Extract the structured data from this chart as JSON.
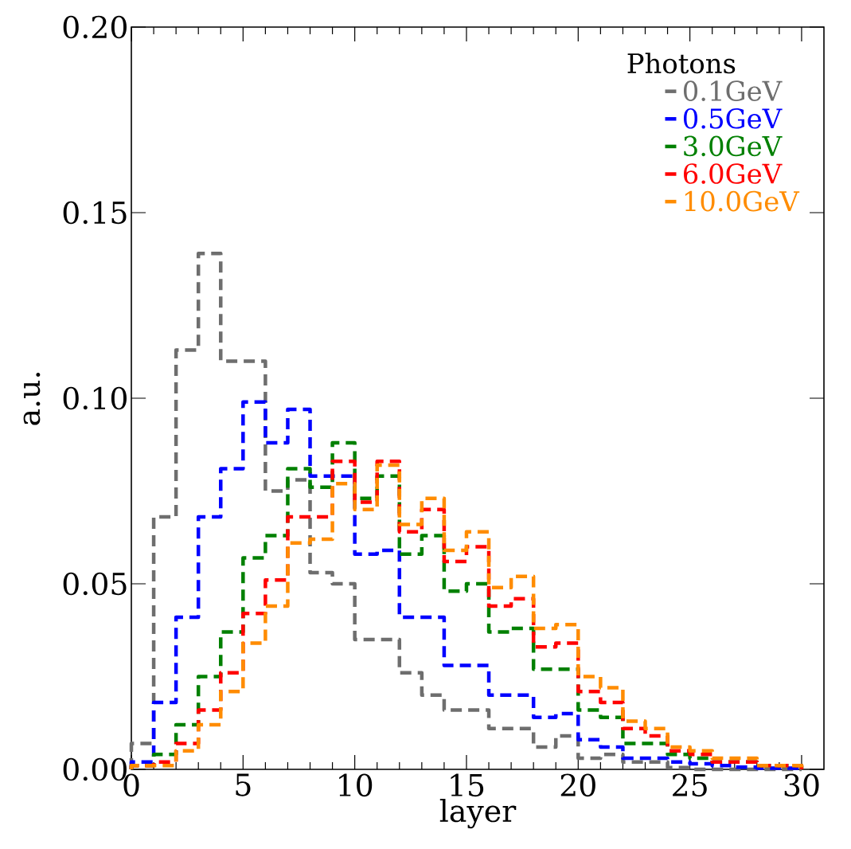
{
  "chart_data": {
    "type": "histogram",
    "xlabel": "layer",
    "ylabel": "a.u.",
    "legend_title": "Photons",
    "legend": "top right",
    "line_style": "dashed",
    "bins": [
      0,
      1,
      2,
      3,
      4,
      5,
      6,
      7,
      8,
      9,
      10,
      11,
      12,
      13,
      14,
      15,
      16,
      17,
      18,
      19,
      20,
      21,
      22,
      23,
      24,
      25,
      26,
      27,
      28,
      29,
      30
    ],
    "series": [
      {
        "name": "0.1GeV",
        "color": "#6e6e6e",
        "values": [
          0.007,
          0.068,
          0.113,
          0.139,
          0.11,
          0.11,
          0.075,
          0.078,
          0.053,
          0.05,
          0.035,
          0.035,
          0.026,
          0.02,
          0.016,
          0.016,
          0.011,
          0.011,
          0.006,
          0.009,
          0.003,
          0.004,
          0.002,
          0.002,
          0.0005,
          0,
          0,
          0,
          0,
          0
        ]
      },
      {
        "name": "0.5GeV",
        "color": "#0000ff",
        "values": [
          0.002,
          0.018,
          0.041,
          0.068,
          0.081,
          0.099,
          0.088,
          0.097,
          0.079,
          0.079,
          0.058,
          0.059,
          0.041,
          0.041,
          0.028,
          0.028,
          0.02,
          0.02,
          0.014,
          0.015,
          0.008,
          0.006,
          0.003,
          0.003,
          0.002,
          0.0015,
          0.001,
          0.0006,
          0.0003,
          0.0003
        ]
      },
      {
        "name": "3.0GeV",
        "color": "#008000",
        "values": [
          0.001,
          0.004,
          0.012,
          0.025,
          0.037,
          0.057,
          0.063,
          0.081,
          0.076,
          0.088,
          0.073,
          0.079,
          0.058,
          0.063,
          0.048,
          0.05,
          0.037,
          0.038,
          0.027,
          0.027,
          0.016,
          0.014,
          0.007,
          0.007,
          0.004,
          0.003,
          0.002,
          0.002,
          0.001,
          0.001
        ]
      },
      {
        "name": "6.0GeV",
        "color": "#ff0000",
        "values": [
          0.001,
          0.002,
          0.007,
          0.016,
          0.026,
          0.042,
          0.051,
          0.068,
          0.068,
          0.083,
          0.072,
          0.083,
          0.064,
          0.07,
          0.056,
          0.06,
          0.044,
          0.046,
          0.033,
          0.034,
          0.021,
          0.018,
          0.011,
          0.009,
          0.005,
          0.004,
          0.002,
          0.002,
          0.001,
          0.001
        ]
      },
      {
        "name": "10.0GeV",
        "color": "#ff8c00",
        "values": [
          0.001,
          0.001,
          0.005,
          0.012,
          0.021,
          0.034,
          0.044,
          0.061,
          0.062,
          0.077,
          0.07,
          0.082,
          0.066,
          0.073,
          0.059,
          0.064,
          0.049,
          0.052,
          0.038,
          0.039,
          0.025,
          0.022,
          0.013,
          0.011,
          0.006,
          0.005,
          0.003,
          0.003,
          0.001,
          0.001
        ]
      }
    ],
    "xlim": [
      0,
      31
    ],
    "ylim": [
      0,
      0.2
    ],
    "xticks": [
      0,
      5,
      10,
      15,
      20,
      25,
      30
    ],
    "yticks": [
      {
        "value": 0,
        "label": "0.00"
      },
      {
        "value": 0.05,
        "label": "0.05"
      },
      {
        "value": 0.1,
        "label": "0.10"
      },
      {
        "value": 0.15,
        "label": "0.15"
      },
      {
        "value": 0.2,
        "label": "0.20"
      }
    ]
  }
}
